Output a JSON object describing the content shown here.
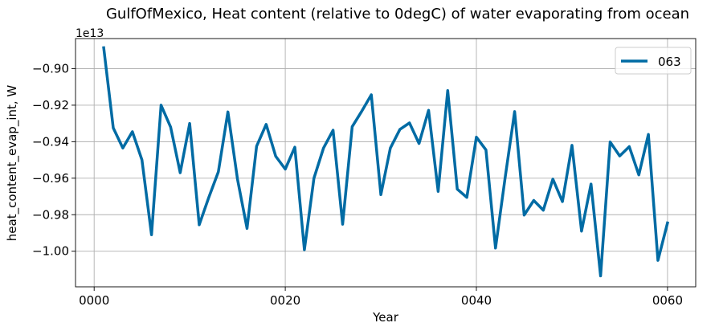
{
  "chart_data": {
    "type": "line",
    "title": "GulfOfMexico, Heat content (relative to 0degC) of water evaporating from ocean",
    "xlabel": "Year",
    "ylabel": "heat_content_evap_int, W",
    "y_offset_label": "1e13",
    "xlim": [
      -1.95,
      62.95
    ],
    "ylim": [
      -1.0195,
      -0.8835
    ],
    "x_ticks": [
      {
        "value": 0,
        "label": "0000"
      },
      {
        "value": 20,
        "label": "0020"
      },
      {
        "value": 40,
        "label": "0040"
      },
      {
        "value": 60,
        "label": "0060"
      }
    ],
    "y_ticks": [
      {
        "value": -1.0,
        "label": "−1.00"
      },
      {
        "value": -0.98,
        "label": "−0.98"
      },
      {
        "value": -0.96,
        "label": "−0.96"
      },
      {
        "value": -0.94,
        "label": "−0.94"
      },
      {
        "value": -0.92,
        "label": "−0.92"
      },
      {
        "value": -0.9,
        "label": "−0.90"
      }
    ],
    "grid": true,
    "legend_position": "top-right",
    "series": [
      {
        "name": "063",
        "color": "#006ba4",
        "x": [
          1,
          2,
          3,
          4,
          5,
          6,
          7,
          8,
          9,
          10,
          11,
          12,
          13,
          14,
          15,
          16,
          17,
          18,
          19,
          20,
          21,
          22,
          23,
          24,
          25,
          26,
          27,
          28,
          29,
          30,
          31,
          32,
          33,
          34,
          35,
          36,
          37,
          38,
          39,
          40,
          41,
          42,
          43,
          44,
          45,
          46,
          47,
          48,
          49,
          50,
          51,
          52,
          53,
          54,
          55,
          56,
          57,
          58,
          59,
          60
        ],
        "values": [
          -0.8885,
          -0.9325,
          -0.9435,
          -0.9345,
          -0.95,
          -0.991,
          -0.92,
          -0.932,
          -0.957,
          -0.93,
          -0.9855,
          -0.9705,
          -0.9565,
          -0.9237,
          -0.9605,
          -0.9875,
          -0.9425,
          -0.9305,
          -0.948,
          -0.955,
          -0.943,
          -0.9992,
          -0.96,
          -0.9435,
          -0.9337,
          -0.9852,
          -0.9318,
          -0.9233,
          -0.9143,
          -0.969,
          -0.9435,
          -0.9333,
          -0.9297,
          -0.941,
          -0.9228,
          -0.9672,
          -0.912,
          -0.966,
          -0.9705,
          -0.9375,
          -0.9445,
          -0.9983,
          -0.96,
          -0.9235,
          -0.9802,
          -0.9722,
          -0.9775,
          -0.9605,
          -0.9728,
          -0.942,
          -0.989,
          -0.9632,
          -1.0135,
          -0.9402,
          -0.9478,
          -0.9427,
          -0.9582,
          -0.936,
          -1.005,
          -0.9845
        ]
      }
    ]
  }
}
